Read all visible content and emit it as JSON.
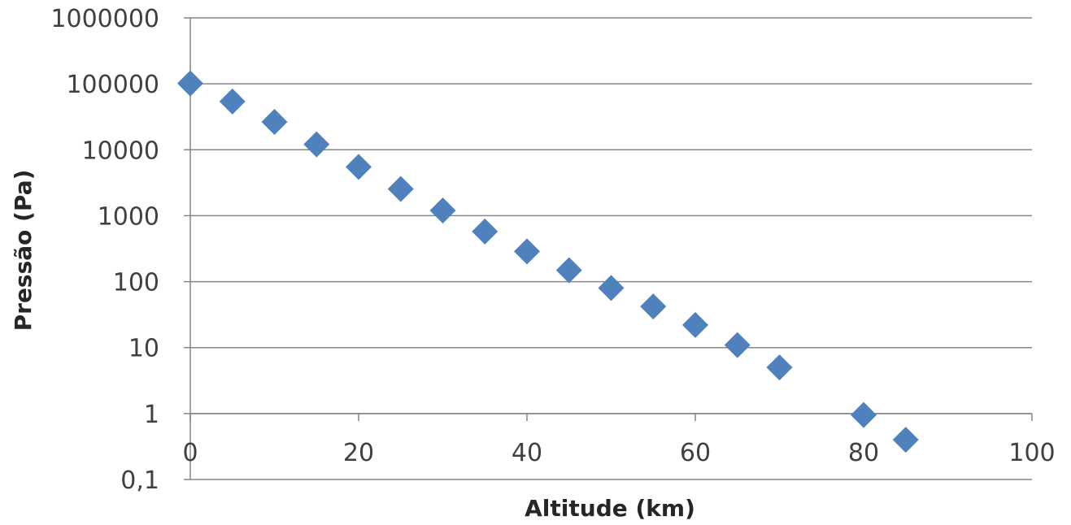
{
  "chart_data": {
    "type": "scatter",
    "title": "",
    "xlabel": "Altitude (km)",
    "ylabel": "Pressão (Pa)",
    "x_scale": "linear",
    "y_scale": "log",
    "xlim": [
      0,
      100
    ],
    "ylim": [
      0.1,
      1000000
    ],
    "x_ticks": [
      0,
      20,
      40,
      60,
      80,
      100
    ],
    "x_tick_labels": [
      "0",
      "20",
      "40",
      "60",
      "80",
      "100"
    ],
    "y_ticks": [
      0.1,
      1,
      10,
      100,
      1000,
      10000,
      100000,
      1000000
    ],
    "y_tick_labels": [
      "0,1",
      "1",
      "10",
      "100",
      "1000",
      "10000",
      "100000",
      "1000000"
    ],
    "grid": "horizontal",
    "legend": "none",
    "marker": "diamond",
    "series": [
      {
        "color": "#4F81BD",
        "points": [
          {
            "x": 0,
            "y": 101325
          },
          {
            "x": 5,
            "y": 54000
          },
          {
            "x": 10,
            "y": 26500
          },
          {
            "x": 15,
            "y": 12100
          },
          {
            "x": 20,
            "y": 5500
          },
          {
            "x": 25,
            "y": 2550
          },
          {
            "x": 30,
            "y": 1200
          },
          {
            "x": 35,
            "y": 575
          },
          {
            "x": 40,
            "y": 287
          },
          {
            "x": 45,
            "y": 149
          },
          {
            "x": 50,
            "y": 80
          },
          {
            "x": 55,
            "y": 42
          },
          {
            "x": 60,
            "y": 22
          },
          {
            "x": 65,
            "y": 10.9
          },
          {
            "x": 70,
            "y": 5
          },
          {
            "x": 80,
            "y": 0.95
          },
          {
            "x": 85,
            "y": 0.4
          }
        ]
      }
    ]
  }
}
